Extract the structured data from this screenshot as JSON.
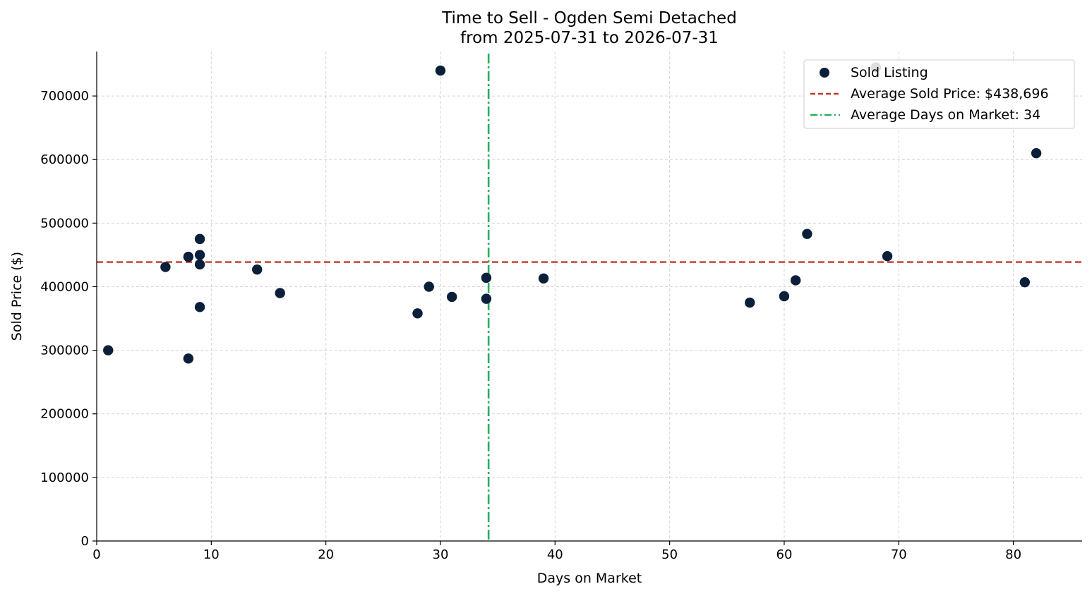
{
  "chart_data": {
    "type": "scatter",
    "title": "Time to Sell - Ogden Semi Detached",
    "subtitle": "from 2025-07-31 to 2026-07-31",
    "xlabel": "Days on Market",
    "ylabel": "Sold Price ($)",
    "xlim": [
      0,
      86
    ],
    "ylim": [
      0,
      770000
    ],
    "x_ticks": [
      0,
      10,
      20,
      30,
      40,
      50,
      60,
      70,
      80
    ],
    "y_ticks": [
      0,
      100000,
      200000,
      300000,
      400000,
      500000,
      600000,
      700000
    ],
    "grid": true,
    "legend_position": "top-right",
    "series": [
      {
        "name": "Sold Listing",
        "color": "#0b1f3a",
        "points": [
          {
            "x": 1,
            "y": 300000
          },
          {
            "x": 6,
            "y": 431000
          },
          {
            "x": 8,
            "y": 447000
          },
          {
            "x": 8,
            "y": 287000
          },
          {
            "x": 9,
            "y": 475000
          },
          {
            "x": 9,
            "y": 450000
          },
          {
            "x": 9,
            "y": 435000
          },
          {
            "x": 9,
            "y": 368000
          },
          {
            "x": 14,
            "y": 427000
          },
          {
            "x": 16,
            "y": 390000
          },
          {
            "x": 28,
            "y": 358000
          },
          {
            "x": 29,
            "y": 400000
          },
          {
            "x": 30,
            "y": 740000
          },
          {
            "x": 31,
            "y": 384000
          },
          {
            "x": 34,
            "y": 414000
          },
          {
            "x": 34,
            "y": 381000
          },
          {
            "x": 39,
            "y": 413000
          },
          {
            "x": 57,
            "y": 375000
          },
          {
            "x": 60,
            "y": 385000
          },
          {
            "x": 61,
            "y": 410000
          },
          {
            "x": 62,
            "y": 483000
          },
          {
            "x": 68,
            "y": 745000
          },
          {
            "x": 69,
            "y": 448000
          },
          {
            "x": 81,
            "y": 407000
          },
          {
            "x": 82,
            "y": 610000
          }
        ]
      }
    ],
    "reference_lines": [
      {
        "name": "Average Sold Price: $438,696",
        "orientation": "horizontal",
        "value": 438696,
        "color": "#c0392b",
        "style": "dashed"
      },
      {
        "name": "Average Days on Market: 34",
        "orientation": "vertical",
        "value": 34.2,
        "color": "#27ae60",
        "style": "dashdot"
      }
    ]
  }
}
